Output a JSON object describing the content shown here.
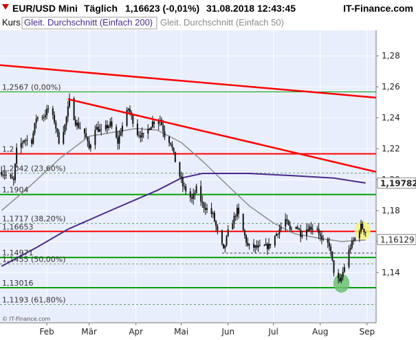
{
  "header": {
    "symbol": "EUR/USD Mini",
    "period": "Täglich",
    "quote": "1,16623 (-0,01%)",
    "datetime": "31.08.2018 12:43:45",
    "brand": "IT-Finance.com"
  },
  "legend": {
    "kurs": "Kurs",
    "ma200": "Gleit. Durchschnitt (Einfach 200)",
    "ma50": "Gleit. Durchschnitt (Einfach 50)"
  },
  "watermark": "© IT-Finance.com",
  "level_labels": {
    "l1": "1,2567 (0,00%)",
    "l2": "1,2",
    "l3": "1,2042 (23,60%)",
    "l4": "1,1904",
    "l5": "1,1717 (38,20%)",
    "l6": "1,16653",
    "l7": "1,14971",
    "l8": "1,1455 (50,00%)",
    "l9": "1,13016",
    "l10": "1,1193 (61,80%)"
  },
  "price_tags": {
    "ma200": "1,19782",
    "current": "1,16129"
  },
  "colors": {
    "plot_bg": "#e9eefc",
    "candle": "#111111",
    "ma50": "#8c8c8c",
    "ma200": "#4a2a8c",
    "trend": "#ff0000",
    "support_green": "#00a000",
    "fib_dash": "#6a9a6a",
    "highlight_yellow": "#f7f27a",
    "highlight_green": "#6fbf73"
  },
  "chart_data": {
    "type": "candlestick",
    "title": "EUR/USD Mini",
    "x_ticks": [
      "Feb",
      "Mär",
      "Apr",
      "Mai",
      "Jun",
      "Jul",
      "Aug",
      "Sep"
    ],
    "y_ticks": [
      "1,28",
      "1,26",
      "1,24",
      "1,22",
      "1,20",
      "1,18",
      "1,16",
      "1,14"
    ],
    "y_tick_values": [
      1.28,
      1.26,
      1.24,
      1.22,
      1.2,
      1.18,
      1.16,
      1.14
    ],
    "ylim": [
      1.1075,
      1.2965
    ],
    "x_range": [
      "2018-01-01",
      "2018-09-07"
    ],
    "month_starts": [
      "2018-02-01",
      "2018-03-01",
      "2018-04-01",
      "2018-05-01",
      "2018-06-01",
      "2018-07-01",
      "2018-08-01",
      "2018-09-01"
    ],
    "close_path": [
      [
        "2018-01-02",
        1.205
      ],
      [
        "2018-01-05",
        1.203
      ],
      [
        "2018-01-10",
        1.199
      ],
      [
        "2018-01-12",
        1.219
      ],
      [
        "2018-01-17",
        1.226
      ],
      [
        "2018-01-22",
        1.225
      ],
      [
        "2018-01-25",
        1.24
      ],
      [
        "2018-01-30",
        1.241
      ],
      [
        "2018-02-02",
        1.246
      ],
      [
        "2018-02-06",
        1.238
      ],
      [
        "2018-02-09",
        1.225
      ],
      [
        "2018-02-13",
        1.235
      ],
      [
        "2018-02-16",
        1.251
      ],
      [
        "2018-02-20",
        1.237
      ],
      [
        "2018-02-26",
        1.23
      ],
      [
        "2018-03-01",
        1.22
      ],
      [
        "2018-03-05",
        1.234
      ],
      [
        "2018-03-09",
        1.231
      ],
      [
        "2018-03-15",
        1.236
      ],
      [
        "2018-03-20",
        1.224
      ],
      [
        "2018-03-22",
        1.232
      ],
      [
        "2018-03-27",
        1.246
      ],
      [
        "2018-04-02",
        1.23
      ],
      [
        "2018-04-06",
        1.228
      ],
      [
        "2018-04-12",
        1.237
      ],
      [
        "2018-04-17",
        1.239
      ],
      [
        "2018-04-20",
        1.229
      ],
      [
        "2018-04-24",
        1.224
      ],
      [
        "2018-04-27",
        1.212
      ],
      [
        "2018-05-02",
        1.196
      ],
      [
        "2018-05-08",
        1.187
      ],
      [
        "2018-05-11",
        1.194
      ],
      [
        "2018-05-15",
        1.184
      ],
      [
        "2018-05-22",
        1.177
      ],
      [
        "2018-05-25",
        1.166
      ],
      [
        "2018-05-29",
        1.154
      ],
      [
        "2018-06-01",
        1.166
      ],
      [
        "2018-06-07",
        1.18
      ],
      [
        "2018-06-14",
        1.157
      ],
      [
        "2018-06-21",
        1.156
      ],
      [
        "2018-06-28",
        1.157
      ],
      [
        "2018-07-03",
        1.165
      ],
      [
        "2018-07-09",
        1.174
      ],
      [
        "2018-07-12",
        1.167
      ],
      [
        "2018-07-16",
        1.171
      ],
      [
        "2018-07-19",
        1.165
      ],
      [
        "2018-07-24",
        1.169
      ],
      [
        "2018-07-30",
        1.169
      ],
      [
        "2018-08-02",
        1.16
      ],
      [
        "2018-08-07",
        1.158
      ],
      [
        "2018-08-10",
        1.141
      ],
      [
        "2018-08-14",
        1.133
      ],
      [
        "2018-08-17",
        1.144
      ],
      [
        "2018-08-21",
        1.157
      ],
      [
        "2018-08-24",
        1.162
      ],
      [
        "2018-08-28",
        1.17
      ],
      [
        "2018-08-31",
        1.1662
      ]
    ],
    "ma200_path": [
      [
        "2018-01-02",
        1.144
      ],
      [
        "2018-01-25",
        1.156
      ],
      [
        "2018-02-15",
        1.168
      ],
      [
        "2018-03-15",
        1.18
      ],
      [
        "2018-04-15",
        1.193
      ],
      [
        "2018-05-01",
        1.201
      ],
      [
        "2018-05-15",
        1.204
      ],
      [
        "2018-06-15",
        1.204
      ],
      [
        "2018-07-15",
        1.2025
      ],
      [
        "2018-08-10",
        1.201
      ],
      [
        "2018-08-31",
        1.1978
      ]
    ],
    "ma50_path": [
      [
        "2018-01-02",
        1.18
      ],
      [
        "2018-01-20",
        1.195
      ],
      [
        "2018-02-10",
        1.214
      ],
      [
        "2018-03-01",
        1.228
      ],
      [
        "2018-04-01",
        1.233
      ],
      [
        "2018-04-15",
        1.232
      ],
      [
        "2018-05-01",
        1.224
      ],
      [
        "2018-05-15",
        1.212
      ],
      [
        "2018-06-01",
        1.196
      ],
      [
        "2018-06-15",
        1.183
      ],
      [
        "2018-07-01",
        1.172
      ],
      [
        "2018-07-15",
        1.165
      ],
      [
        "2018-08-01",
        1.162
      ],
      [
        "2018-08-15",
        1.16
      ],
      [
        "2018-08-31",
        1.161
      ]
    ],
    "trendlines": [
      {
        "name": "upper-trendline",
        "points": [
          [
            "2018-01-01",
            1.274
          ],
          [
            "2018-09-07",
            1.253
          ]
        ],
        "color": "#ff0000"
      },
      {
        "name": "downtrend-line",
        "points": [
          [
            "2018-02-15",
            1.252
          ],
          [
            "2018-09-07",
            1.205
          ]
        ],
        "color": "#ff0000"
      }
    ],
    "horizontal_lines": [
      {
        "name": "level-1-2567",
        "value": 1.2567,
        "style": "solid",
        "color": "#00a000",
        "width": 1
      },
      {
        "name": "level-1-2167",
        "value": 1.2167,
        "style": "solid",
        "color": "#ff0000",
        "width": 2
      },
      {
        "name": "level-1-2042",
        "value": 1.2042,
        "style": "dashed",
        "color": "#6a9a6a",
        "width": 1
      },
      {
        "name": "level-1-1904",
        "value": 1.1904,
        "style": "solid",
        "color": "#00a000",
        "width": 2
      },
      {
        "name": "level-1-1717",
        "value": 1.1717,
        "style": "dashed",
        "color": "#6a9a6a",
        "width": 1
      },
      {
        "name": "level-1-16653",
        "value": 1.16653,
        "style": "solid",
        "color": "#ff0000",
        "width": 2
      },
      {
        "name": "level-1-14971",
        "value": 1.14971,
        "style": "solid",
        "color": "#00a000",
        "width": 2
      },
      {
        "name": "level-1-1455",
        "value": 1.1455,
        "style": "dashed",
        "color": "#6a9a6a",
        "width": 1
      },
      {
        "name": "level-1-13016",
        "value": 1.13016,
        "style": "solid",
        "color": "#00a000",
        "width": 2
      },
      {
        "name": "level-1-1193",
        "value": 1.1193,
        "style": "dashed",
        "color": "#6a9a6a",
        "width": 1
      }
    ],
    "support_dashed": {
      "value": 1.1525,
      "from": "2018-05-28",
      "to": "2018-09-07"
    },
    "highlights": [
      {
        "name": "current-price-highlight",
        "date": "2018-08-29",
        "value": 1.167,
        "color": "#f7f27a"
      },
      {
        "name": "low-highlight",
        "date": "2018-08-15",
        "value": 1.133,
        "color": "#6fbf73"
      }
    ],
    "price_tag_values": {
      "ma200": 1.19782,
      "current": 1.16129
    }
  }
}
